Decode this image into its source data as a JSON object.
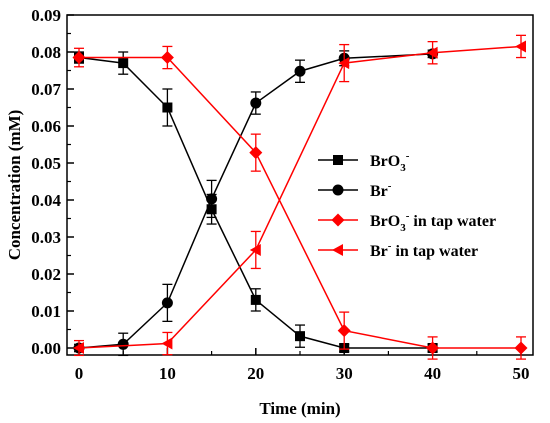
{
  "chart_data": {
    "type": "line",
    "xlabel": "Time (min)",
    "ylabel": "Concentration (mM)",
    "xlim": [
      0,
      50
    ],
    "ylim": [
      0,
      0.09
    ],
    "xticks": [
      0,
      10,
      20,
      30,
      40,
      50
    ],
    "yticks": [
      0.0,
      0.01,
      0.02,
      0.03,
      0.04,
      0.05,
      0.06,
      0.07,
      0.08,
      0.09
    ],
    "ytick_labels": [
      "0.00",
      "0.01",
      "0.02",
      "0.03",
      "0.04",
      "0.05",
      "0.06",
      "0.07",
      "0.08",
      "0.09"
    ],
    "legend_position": "center-right",
    "series": [
      {
        "name": "BrO3-",
        "label_main": "BrO",
        "label_sub": "3",
        "label_sup": "-",
        "label_suffix": "",
        "color": "#000000",
        "marker": "square",
        "x": [
          0,
          5,
          10,
          15,
          20,
          25,
          30,
          40
        ],
        "y": [
          0.0785,
          0.077,
          0.065,
          0.0375,
          0.013,
          0.0032,
          0.0,
          0.0
        ],
        "err": [
          0.0015,
          0.003,
          0.005,
          0.004,
          0.003,
          0.003,
          0.001,
          0.001
        ]
      },
      {
        "name": "Br-",
        "label_main": "Br",
        "label_sub": "",
        "label_sup": "-",
        "label_suffix": "",
        "color": "#000000",
        "marker": "circle",
        "x": [
          0,
          5,
          10,
          15,
          20,
          25,
          30,
          40
        ],
        "y": [
          0.0,
          0.001,
          0.0122,
          0.0403,
          0.0662,
          0.0748,
          0.0783,
          0.0795
        ],
        "err": [
          0.001,
          0.003,
          0.005,
          0.005,
          0.003,
          0.003,
          0.002,
          0.001
        ]
      },
      {
        "name": "BrO3- in tap water",
        "label_main": "BrO",
        "label_sub": "3",
        "label_sup": "-",
        "label_suffix": "  in tap water",
        "color": "#ff0000",
        "marker": "diamond",
        "x": [
          0,
          10,
          20,
          30,
          40,
          50
        ],
        "y": [
          0.0785,
          0.0785,
          0.0528,
          0.0047,
          0.0,
          0.0
        ],
        "err": [
          0.0025,
          0.003,
          0.005,
          0.005,
          0.003,
          0.003
        ]
      },
      {
        "name": "Br- in tap water",
        "label_main": "Br",
        "label_sub": "",
        "label_sup": "-",
        "label_suffix": " in tap water",
        "color": "#ff0000",
        "marker": "triangle-left",
        "x": [
          0,
          10,
          20,
          30,
          40,
          50
        ],
        "y": [
          0.0,
          0.0012,
          0.0265,
          0.077,
          0.0798,
          0.0815
        ],
        "err": [
          0.002,
          0.003,
          0.005,
          0.005,
          0.003,
          0.003
        ]
      }
    ]
  }
}
